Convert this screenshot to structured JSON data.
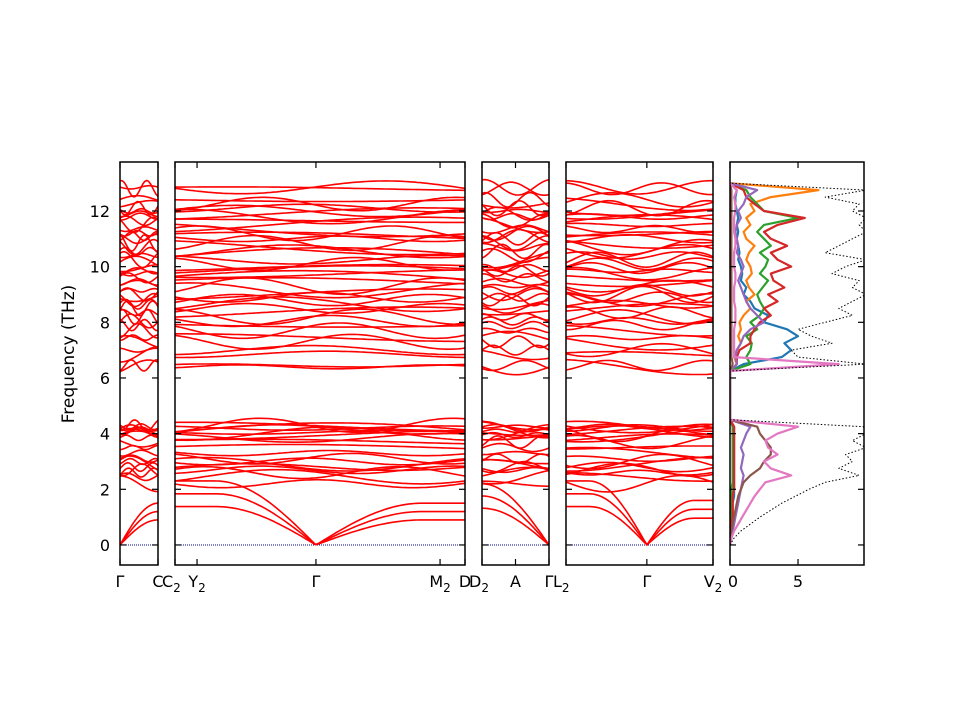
{
  "chart_data": {
    "type": "line",
    "title": "",
    "ylabel": "Frequency (THz)",
    "ylim": [
      -0.72,
      13.76
    ],
    "yticks": [
      "0",
      "2",
      "4",
      "6",
      "8",
      "10",
      "12"
    ],
    "ytick_values": [
      0,
      2,
      4,
      6,
      8,
      10,
      12
    ],
    "band_color": "#ff0000",
    "zero_line_color": "#00008b",
    "panels": [
      {
        "labels": [
          {
            "text": "Γ",
            "sub": "",
            "pos": 0
          },
          {
            "text": "C",
            "sub": "",
            "pos": 1
          }
        ],
        "gamma_pos": 0,
        "acoustic_edge": [
          2.4,
          1.5
        ]
      },
      {
        "labels": [
          {
            "text": "C",
            "sub": "2",
            "pos": 0
          },
          {
            "text": "Y",
            "sub": "2",
            "pos": 0.076
          },
          {
            "text": "Γ",
            "sub": "",
            "pos": 0.486
          },
          {
            "text": "M",
            "sub": "2",
            "pos": 0.914
          },
          {
            "text": "D",
            "sub": "",
            "pos": 1
          }
        ],
        "gamma_pos": 0.486,
        "acoustic_edge": [
          2.3,
          1.5
        ]
      },
      {
        "labels": [
          {
            "text": "D",
            "sub": "2",
            "pos": 0
          },
          {
            "text": "A",
            "sub": "",
            "pos": 0.5
          },
          {
            "text": "Γ",
            "sub": "",
            "pos": 1
          }
        ],
        "gamma_pos": 1,
        "acoustic_edge": [
          2.2,
          1.2
        ]
      },
      {
        "labels": [
          {
            "text": "L",
            "sub": "2",
            "pos": 0
          },
          {
            "text": "Γ",
            "sub": "",
            "pos": 0.55
          },
          {
            "text": "V",
            "sub": "2",
            "pos": 1
          }
        ],
        "gamma_pos": 0.55,
        "acoustic_edge": [
          2.3,
          1.6
        ]
      }
    ],
    "band_levels_low": [
      2.2,
      2.45,
      2.6,
      2.7,
      2.8,
      2.9,
      3.0,
      3.1,
      3.3,
      3.5,
      3.7,
      3.85,
      3.95,
      4.0,
      4.05,
      4.1,
      4.15,
      4.2,
      4.25,
      4.3
    ],
    "band_levels_high": [
      6.4,
      6.45,
      6.85,
      7.0,
      7.3,
      7.45,
      7.7,
      7.9,
      8.05,
      8.2,
      8.35,
      8.5,
      8.65,
      8.8,
      8.9,
      9.0,
      9.15,
      9.3,
      9.45,
      9.6,
      9.75,
      9.85,
      9.95,
      10.1,
      10.25,
      10.4,
      10.55,
      10.7,
      10.85,
      11.0,
      11.1,
      11.2,
      11.35,
      11.5,
      11.65,
      11.8,
      11.9,
      12.0,
      12.1,
      12.25,
      12.4,
      12.8,
      12.85
    ],
    "dos": {
      "xlim": [
        0,
        9.85
      ],
      "xticks": [
        "0",
        "5"
      ],
      "xtick_values": [
        0,
        5
      ],
      "freq_step": 0.25,
      "series": [
        {
          "name": "total",
          "color": "#000000",
          "dotted": true,
          "values": [
            0,
            0.3,
            0.8,
            1.5,
            2.2,
            3,
            3.8,
            4.8,
            5.8,
            7,
            9.5,
            8,
            9,
            8.5,
            10,
            9,
            10,
            9.8,
            0,
            0,
            0,
            0,
            0,
            0,
            0,
            0,
            10,
            5,
            4.5,
            7.5,
            6,
            5,
            7,
            9,
            8,
            9,
            10,
            9,
            9.5,
            7.5,
            8.5,
            10,
            7,
            8,
            9,
            10,
            9.5,
            10,
            9,
            9.5,
            7,
            10,
            0
          ]
        },
        {
          "name": "blue",
          "color": "#1f77b4",
          "values": [
            0,
            0,
            0.1,
            0.1,
            0.2,
            0.2,
            0.2,
            0.3,
            0.3,
            0.3,
            0.3,
            0.3,
            0.3,
            0.3,
            0.3,
            0.3,
            0.3,
            0.3,
            0,
            0,
            0,
            0,
            0,
            0,
            0,
            0,
            1,
            3.8,
            4.5,
            4,
            5,
            4.2,
            2.5,
            2.8,
            1.8,
            1.5,
            1,
            1.2,
            0.8,
            0.9,
            0.8,
            0.6,
            0.7,
            0.6,
            0.5,
            0.6,
            0.5,
            0.6,
            0.5,
            0.4,
            0.4,
            0.5,
            0
          ]
        },
        {
          "name": "orange",
          "color": "#ff7f0e",
          "values": [
            0,
            0,
            0,
            0.1,
            0.1,
            0.1,
            0.1,
            0.1,
            0.1,
            0.2,
            0.2,
            0.2,
            0.2,
            0.2,
            0.2,
            0.2,
            0.2,
            0.2,
            0,
            0,
            0,
            0,
            0,
            0,
            0,
            0,
            0.5,
            0.3,
            0.5,
            0.8,
            0.6,
            0.8,
            0.7,
            1,
            1.5,
            1.2,
            1.8,
            1.4,
            1.2,
            1.6,
            1.5,
            1.2,
            1.4,
            1.8,
            1.2,
            1,
            1.5,
            1.2,
            1.8,
            1.5,
            3,
            6.5,
            0
          ]
        },
        {
          "name": "green",
          "color": "#2ca02c",
          "values": [
            0,
            0,
            0,
            0.1,
            0.1,
            0.1,
            0.1,
            0.1,
            0.1,
            0.2,
            0.2,
            0.2,
            0.2,
            0.2,
            0.2,
            0.2,
            0.2,
            0.2,
            0,
            0,
            0,
            0,
            0,
            0,
            0,
            0,
            1.5,
            1.2,
            1.5,
            1.6,
            1.2,
            2,
            1.5,
            2.2,
            2.5,
            2.2,
            2,
            2.4,
            2.8,
            2.2,
            2.6,
            2.8,
            2.2,
            3,
            2.5,
            2,
            2.5,
            5,
            2.5,
            2,
            1.5,
            1.2,
            0
          ]
        },
        {
          "name": "red",
          "color": "#d62728",
          "values": [
            0,
            0,
            0.1,
            0.1,
            0.2,
            0.2,
            0.2,
            0.2,
            0.3,
            0.3,
            0.3,
            0.3,
            0.3,
            0.3,
            0.3,
            0.3,
            0.3,
            0.3,
            0,
            0,
            0,
            0,
            0,
            0,
            0,
            0,
            0.5,
            0.5,
            0.7,
            1.5,
            1.5,
            1.8,
            2.2,
            3,
            2.5,
            3.5,
            2.8,
            4,
            3.2,
            3,
            4.5,
            3.5,
            3,
            4.2,
            3,
            2.5,
            3.5,
            5.5,
            2.5,
            1.8,
            1.2,
            1,
            0
          ]
        },
        {
          "name": "purple",
          "color": "#9467bd",
          "values": [
            0,
            0.1,
            0.2,
            0.3,
            0.4,
            0.5,
            0.6,
            0.7,
            0.8,
            0.9,
            1,
            0.8,
            0.9,
            1,
            0.8,
            1,
            1.2,
            1.5,
            0,
            0,
            0,
            0,
            0,
            0,
            0,
            0,
            0.5,
            0.4,
            0.5,
            0.8,
            1,
            1.5,
            2.5,
            2,
            1.5,
            1.2,
            1,
            0.8,
            0.6,
            0.8,
            1,
            0.8,
            0.5,
            0.6,
            0.5,
            0.4,
            0.5,
            0.8,
            0.6,
            1,
            1.2,
            2,
            0
          ]
        },
        {
          "name": "brown",
          "color": "#8c564b",
          "values": [
            0,
            0,
            0.1,
            0.2,
            0.3,
            0.4,
            0.5,
            0.6,
            0.8,
            1,
            1.5,
            2.2,
            2.5,
            3,
            3,
            2.6,
            2.2,
            2,
            0,
            0,
            0,
            0,
            0,
            0,
            0,
            0,
            0.2,
            0.1,
            0.1,
            0.1,
            0.1,
            0.1,
            0.1,
            0.1,
            0.1,
            0.1,
            0.1,
            0.1,
            0.1,
            0.1,
            0.1,
            0.1,
            0.1,
            0.1,
            0.1,
            0.1,
            0.1,
            0.1,
            0.1,
            0.1,
            0.1,
            0.1,
            0
          ]
        },
        {
          "name": "pink",
          "color": "#e377c2",
          "values": [
            0,
            0.1,
            0.3,
            0.6,
            0.9,
            1.2,
            1.5,
            1.8,
            2.2,
            2.6,
            4.5,
            3,
            2.5,
            3.5,
            2.8,
            2.6,
            3.5,
            5,
            0,
            0,
            0,
            0,
            0,
            0,
            0,
            0,
            8,
            0.3,
            0.3,
            0.3,
            0.3,
            0.3,
            0.4,
            0.4,
            0.4,
            0.3,
            0.3,
            0.3,
            0.4,
            0.4,
            0.3,
            0.3,
            0.3,
            0.4,
            0.4,
            0.3,
            0.3,
            0.3,
            0.4,
            0.4,
            0.3,
            0.5,
            0
          ]
        }
      ]
    }
  }
}
